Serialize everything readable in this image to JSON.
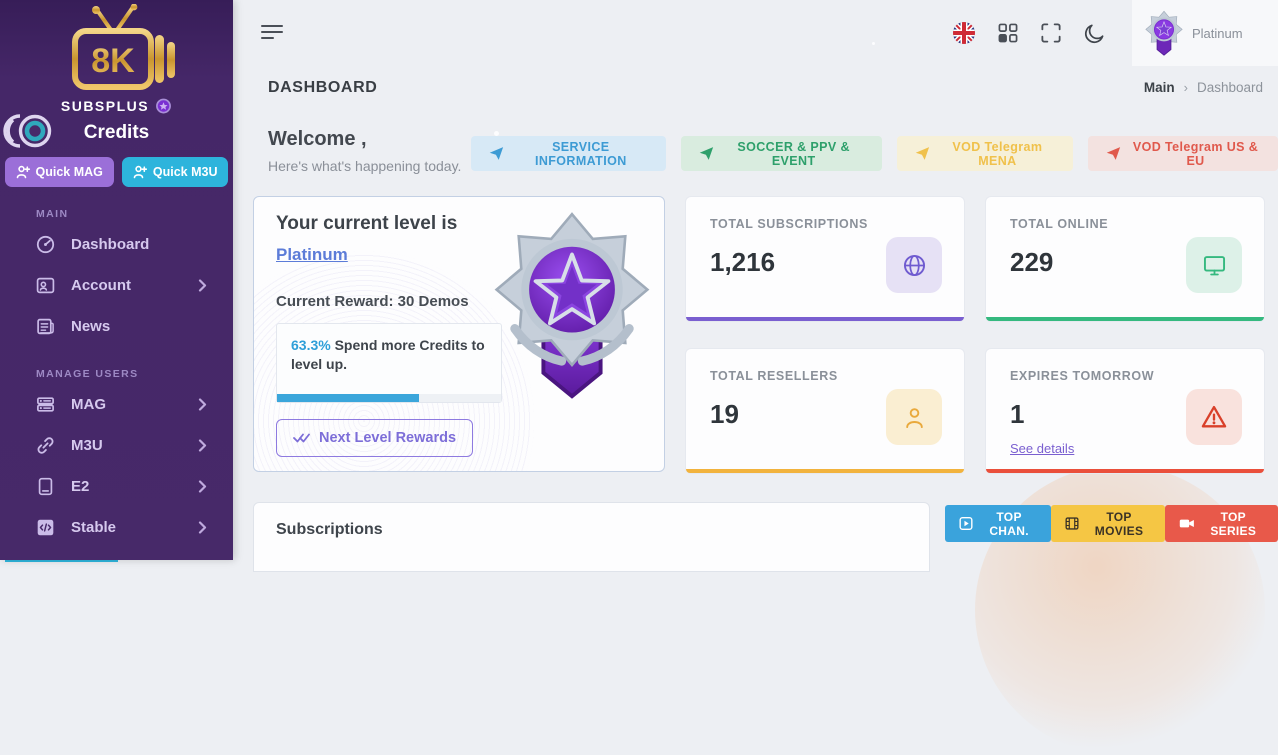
{
  "sidebar": {
    "logo_text": "8K",
    "brand": "SUBSPLUS",
    "credits_label": "Credits",
    "quick_mag": "Quick MAG",
    "quick_m3u": "Quick M3U",
    "section_main": "MAIN",
    "section_manage": "MANAGE USERS",
    "items_main": [
      {
        "label": "Dashboard",
        "icon": "dashboard-icon",
        "has_submenu": false
      },
      {
        "label": "Account",
        "icon": "account-icon",
        "has_submenu": true
      },
      {
        "label": "News",
        "icon": "news-icon",
        "has_submenu": false
      }
    ],
    "items_manage": [
      {
        "label": "MAG",
        "icon": "mag-box-icon",
        "has_submenu": true
      },
      {
        "label": "M3U",
        "icon": "link-icon",
        "has_submenu": true
      },
      {
        "label": "E2",
        "icon": "device-icon",
        "has_submenu": true
      },
      {
        "label": "Stable",
        "icon": "code-icon",
        "has_submenu": true
      }
    ]
  },
  "topbar": {
    "icons": [
      "uk-flag-icon",
      "grid-icon",
      "fullscreen-icon",
      "moon-icon"
    ],
    "user_level": "Platinum"
  },
  "titlebar": {
    "title": "DASHBOARD",
    "breadcrumb_root": "Main",
    "breadcrumb_current": "Dashboard"
  },
  "welcome": {
    "title": "Welcome ,",
    "subtitle": "Here's what's happening today."
  },
  "action_buttons": [
    {
      "label": "SERVICE INFORMATION",
      "icon": "telegram-plane-icon",
      "color": "#3d9bd4"
    },
    {
      "label": "SOCCER & PPV & EVENT",
      "icon": "telegram-plane-icon",
      "color": "#2ea06b"
    },
    {
      "label": "VOD Telegram MENA",
      "icon": "telegram-plane-icon",
      "color": "#f0c14b"
    },
    {
      "label": "VOD Telegram US & EU",
      "icon": "telegram-plane-icon",
      "color": "#e0594c"
    }
  ],
  "level_card": {
    "title": "Your current level is",
    "level": "Platinum",
    "reward": "Current Reward: 30 Demos",
    "progress_pct": "63.3%",
    "progress_text": "Spend more Credits to level up.",
    "progress_value": 63.3,
    "progress_color": "#3ba6db",
    "rewards_button": "Next Level Rewards",
    "badge": "platinum-medal-icon"
  },
  "stats": [
    {
      "label": "TOTAL SUBSCRIPTIONS",
      "value": "1,216",
      "icon": "globe-icon",
      "accent": "#7a5fd0"
    },
    {
      "label": "TOTAL ONLINE",
      "value": "229",
      "icon": "monitor-icon",
      "accent": "#35b97f"
    },
    {
      "label": "TOTAL RESELLERS",
      "value": "19",
      "icon": "reseller-person-icon",
      "accent": "#f2b33d"
    },
    {
      "label": "EXPIRES TOMORROW",
      "value": "1",
      "link": "See details",
      "icon": "warning-triangle-icon",
      "accent": "#ea4f3b"
    }
  ],
  "subscriptions": {
    "title": "Subscriptions"
  },
  "top_buttons": [
    {
      "label": "TOP CHAN.",
      "icon": "play-square-icon",
      "color": "#3aa3dc"
    },
    {
      "label": "TOP MOVIES",
      "icon": "film-icon",
      "color": "#f5c644"
    },
    {
      "label": "TOP SERIES",
      "icon": "video-camera-icon",
      "color": "#e8594a"
    }
  ]
}
